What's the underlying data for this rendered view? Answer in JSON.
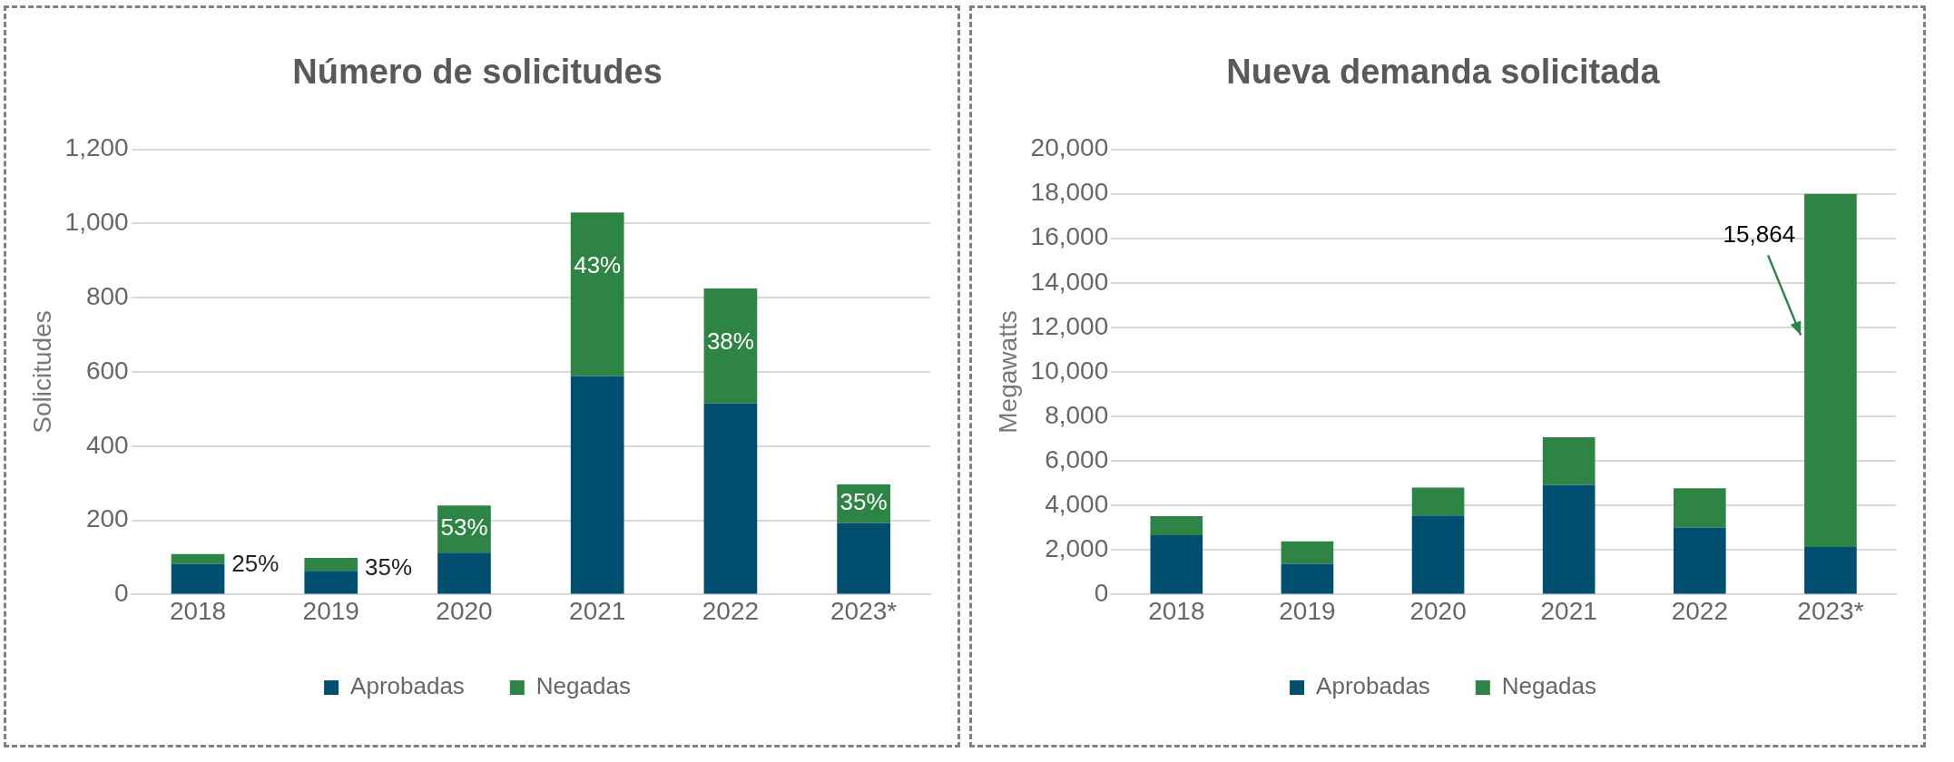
{
  "chart_data": [
    {
      "type": "bar",
      "title": "Número de solicitudes",
      "ylabel": "Solicitudes",
      "stacked": true,
      "categories": [
        "2018",
        "2019",
        "2020",
        "2021",
        "2022",
        "2023*"
      ],
      "series": [
        {
          "name": "Aprobadas",
          "color": "#004f71",
          "values": [
            82,
            64,
            113,
            589,
            515,
            193
          ]
        },
        {
          "name": "Negadas",
          "color": "#2e8445",
          "values": [
            27,
            35,
            127,
            441,
            310,
            104
          ]
        }
      ],
      "annotations": [
        "25%",
        "35%",
        "53%",
        "43%",
        "38%",
        "35%"
      ],
      "ylim": [
        0,
        1200
      ],
      "yticks": [
        0,
        200,
        400,
        600,
        800,
        {
          "value": 1000,
          "label": "1,000"
        },
        {
          "value": 1200,
          "label": "1,200"
        }
      ],
      "grid": "y",
      "legend": "bottom"
    },
    {
      "type": "bar",
      "title": "Nueva demanda solicitada",
      "ylabel": "Megawatts",
      "stacked": true,
      "categories": [
        "2018",
        "2019",
        "2020",
        "2021",
        "2022",
        "2023*"
      ],
      "series": [
        {
          "name": "Aprobadas",
          "color": "#004f71",
          "values": [
            2670,
            1380,
            3550,
            4930,
            3010,
            2136
          ]
        },
        {
          "name": "Negadas",
          "color": "#2e8445",
          "values": [
            850,
            1010,
            1250,
            2135,
            1760,
            15864
          ],
          "value_labels": [
            null,
            null,
            null,
            null,
            null,
            "15,864"
          ]
        }
      ],
      "ylim": [
        0,
        20000
      ],
      "yticks": [
        0,
        {
          "value": 2000,
          "label": "2,000"
        },
        {
          "value": 4000,
          "label": "4,000"
        },
        {
          "value": 6000,
          "label": "6,000"
        },
        {
          "value": 8000,
          "label": "8,000"
        },
        {
          "value": 10000,
          "label": "10,000"
        },
        {
          "value": 12000,
          "label": "12,000"
        },
        {
          "value": 14000,
          "label": "14,000"
        },
        {
          "value": 16000,
          "label": "16,000"
        },
        {
          "value": 18000,
          "label": "18,000"
        },
        {
          "value": 20000,
          "label": "20,000"
        }
      ],
      "grid": "y",
      "legend": "bottom"
    }
  ]
}
